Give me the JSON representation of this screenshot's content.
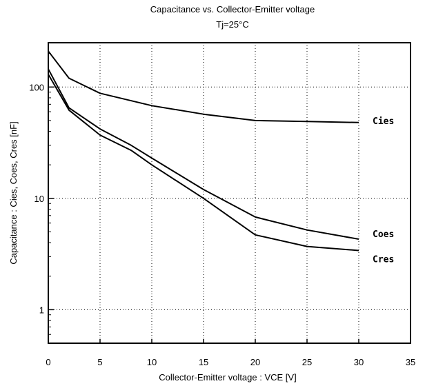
{
  "chart_data": {
    "type": "line",
    "title": "Capacitance vs. Collector-Emitter voltage",
    "subtitle": "Tj=25°C",
    "xlabel": "Collector-Emitter voltage : VCE [V]",
    "ylabel": "Capacitance : Cies, Coes, Cres [nF]",
    "xlim": [
      0,
      35
    ],
    "ylim": [
      0.5,
      250
    ],
    "yscale": "log",
    "x_ticks": [
      "0",
      "5",
      "10",
      "15",
      "20",
      "25",
      "30",
      "35"
    ],
    "y_ticks": [
      "1",
      "10",
      "100"
    ],
    "grid": "dotted",
    "series": [
      {
        "name": "Cies",
        "x": [
          0,
          2,
          5,
          10,
          15,
          20,
          25,
          30
        ],
        "y": [
          210,
          120,
          88,
          68,
          57,
          50,
          49,
          48
        ]
      },
      {
        "name": "Coes",
        "x": [
          0,
          2,
          5,
          8,
          10,
          15,
          20,
          25,
          30
        ],
        "y": [
          145,
          65,
          42,
          30,
          23,
          12,
          6.8,
          5.2,
          4.3
        ]
      },
      {
        "name": "Cres",
        "x": [
          0,
          2,
          5,
          8,
          10,
          15,
          20,
          25,
          30
        ],
        "y": [
          130,
          62,
          37,
          27,
          20,
          10,
          4.7,
          3.7,
          3.4
        ]
      }
    ]
  }
}
